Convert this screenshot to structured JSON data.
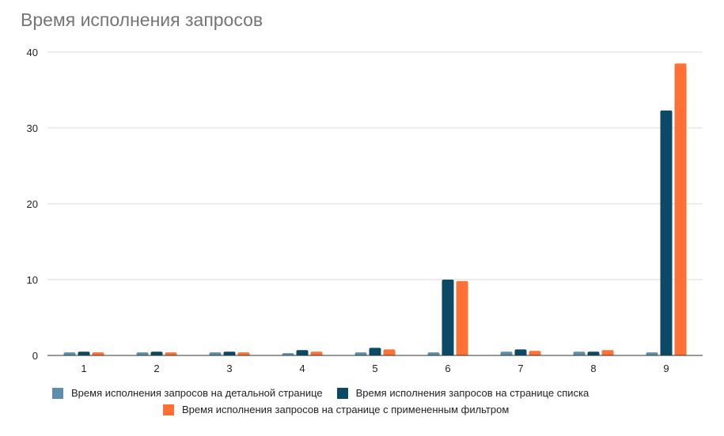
{
  "chart_data": {
    "type": "bar",
    "title": "Время исполнения запросов",
    "xlabel": "",
    "ylabel": "",
    "ylim": [
      0,
      40
    ],
    "yticks": [
      0,
      10,
      20,
      30,
      40
    ],
    "grid": true,
    "legend_position": "bottom",
    "categories": [
      "1",
      "2",
      "3",
      "4",
      "5",
      "6",
      "7",
      "8",
      "9"
    ],
    "series": [
      {
        "name": "Время исполнения запросов на детальной странице",
        "color": "#5b8fad",
        "values": [
          0.4,
          0.4,
          0.4,
          0.3,
          0.4,
          0.4,
          0.5,
          0.5,
          0.4
        ]
      },
      {
        "name": "Время исполнения запросов на странице списка",
        "color": "#0b4a66",
        "values": [
          0.5,
          0.5,
          0.5,
          0.7,
          1.0,
          10.0,
          0.8,
          0.5,
          32.3
        ]
      },
      {
        "name": "Время исполнения запросов на странице с примененным фильтром",
        "color": "#ff7034",
        "values": [
          0.4,
          0.4,
          0.4,
          0.5,
          0.8,
          9.8,
          0.6,
          0.7,
          38.5
        ]
      }
    ]
  }
}
